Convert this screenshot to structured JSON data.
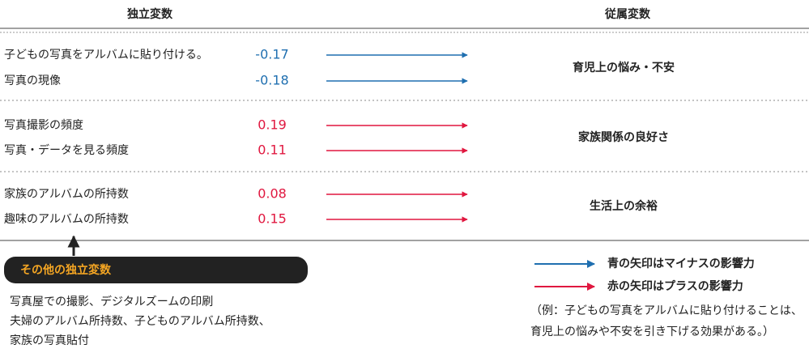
{
  "header": {
    "independent": "独立変数",
    "dependent": "従属変数"
  },
  "groups": [
    {
      "dependent": "育児上の悩み・不安",
      "color": "#1f6fb0",
      "rows": [
        {
          "label": "子どもの写真をアルバムに貼り付ける。",
          "value": "-0.17"
        },
        {
          "label": "写真の現像",
          "value": "-0.18"
        }
      ]
    },
    {
      "dependent": "家族関係の良好さ",
      "color": "#e0173f",
      "rows": [
        {
          "label": "写真撮影の頻度",
          "value": "0.19"
        },
        {
          "label": "写真・データを見る頻度",
          "value": "0.11"
        }
      ]
    },
    {
      "dependent": "生活上の余裕",
      "color": "#e0173f",
      "rows": [
        {
          "label": "家族のアルバムの所持数",
          "value": "0.08"
        },
        {
          "label": "趣味のアルバムの所持数",
          "value": "0.15"
        }
      ]
    }
  ],
  "other": {
    "title": "その他の独立変数",
    "lines": [
      "写真屋での撮影、デジタルズームの印刷",
      "夫婦のアルバム所持数、子どものアルバム所持数、",
      "家族の写真貼付"
    ]
  },
  "legend": [
    {
      "label": "青の矢印はマイナスの影響力",
      "color": "#1f6fb0"
    },
    {
      "label": "赤の矢印はプラスの影響力",
      "color": "#e0173f"
    }
  ],
  "note": [
    "（例：子どもの写真をアルバムに貼り付けることは、",
    "育児上の悩みや不安を引き下げる効果がある。）"
  ]
}
